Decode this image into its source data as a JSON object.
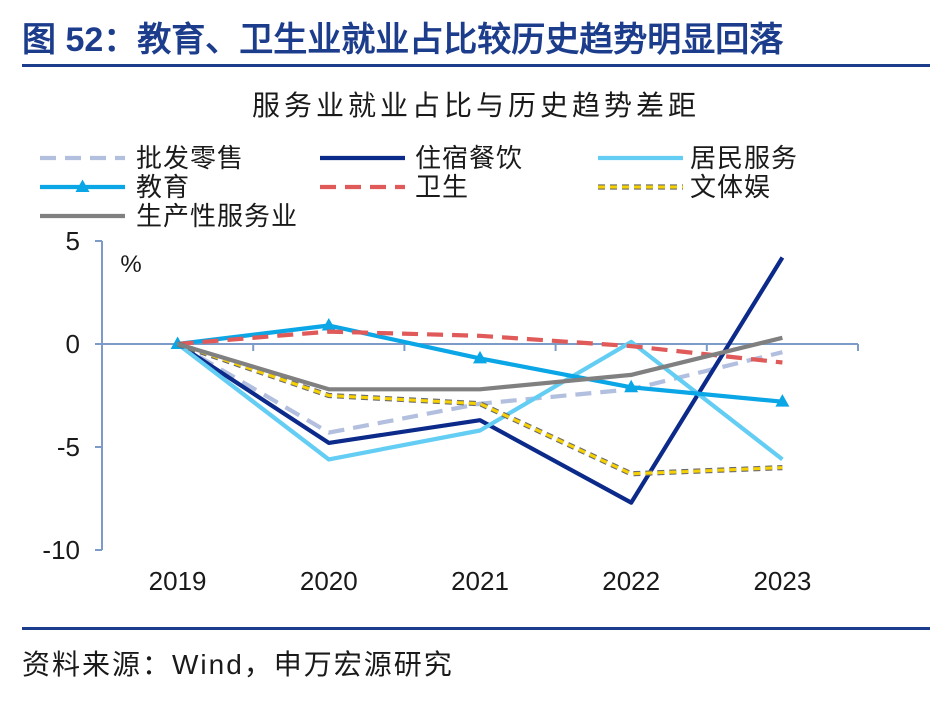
{
  "header": {
    "title": "图 52：教育、卫生业就业占比较历史趋势明显回落",
    "accent_color": "#1c3c8c"
  },
  "footer": {
    "source": "资料来源：Wind，申万宏源研究"
  },
  "chart_data": {
    "type": "line",
    "title": "服务业就业占比与历史趋势差距",
    "xlabel": "",
    "ylabel": "%",
    "categories": [
      "2019",
      "2020",
      "2021",
      "2022",
      "2023"
    ],
    "ylim": [
      -10,
      5
    ],
    "yticks": [
      5,
      0,
      -5,
      -10
    ],
    "grid": false,
    "legend_position": "top",
    "series": [
      {
        "name": "批发零售",
        "values": [
          0,
          -4.3,
          -2.9,
          -2.2,
          -0.4
        ],
        "color": "#b3bfdf",
        "style": "dashed"
      },
      {
        "name": "住宿餐饮",
        "values": [
          0,
          -4.8,
          -3.7,
          -7.7,
          4.2
        ],
        "color": "#0b2a8a",
        "style": "solid"
      },
      {
        "name": "居民服务",
        "values": [
          0,
          -5.6,
          -4.2,
          0.1,
          -5.6
        ],
        "color": "#63cdf3",
        "style": "solid"
      },
      {
        "name": "教育",
        "values": [
          0,
          0.9,
          -0.7,
          -2.1,
          -2.8
        ],
        "color": "#0aa6e6",
        "style": "solid",
        "marker": "triangle"
      },
      {
        "name": "卫生",
        "values": [
          0,
          0.6,
          0.4,
          -0.1,
          -0.9
        ],
        "color": "#e05a5a",
        "style": "dashed"
      },
      {
        "name": "文体娱",
        "values": [
          0,
          -2.5,
          -2.9,
          -6.3,
          -6.0
        ],
        "color": "#f6d000",
        "style": "dotted"
      },
      {
        "name": "生产性服务业",
        "values": [
          0,
          -2.2,
          -2.2,
          -1.5,
          0.3
        ],
        "color": "#808080",
        "style": "solid"
      }
    ]
  }
}
